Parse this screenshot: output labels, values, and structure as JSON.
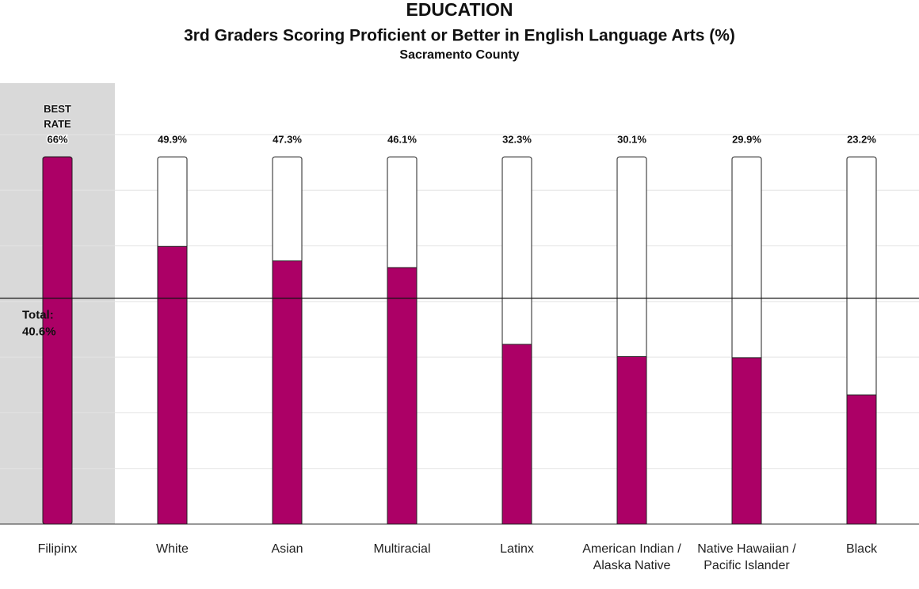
{
  "chart_data": {
    "type": "bar",
    "title": "EDUCATION",
    "subtitle": "3rd Graders Scoring Proficient or Better in English Language Arts (%)",
    "subtitle2": "Sacramento County",
    "categories": [
      "Filipinx",
      "White",
      "Asian",
      "Multiracial",
      "Latinx",
      "American Indian / Alaska Native",
      "Native Hawaiian / Pacific Islander",
      "Black"
    ],
    "values": [
      66,
      49.9,
      47.3,
      46.1,
      32.3,
      30.1,
      29.9,
      23.2
    ],
    "value_labels": [
      "66%",
      "49.9%",
      "47.3%",
      "46.1%",
      "32.3%",
      "30.1%",
      "29.9%",
      "23.2%"
    ],
    "highlight_label": "BEST RATE",
    "total": {
      "label": "Total:",
      "value": 40.6,
      "value_label": "40.6%"
    },
    "color": "#ac0066",
    "ylim": [
      0,
      70
    ],
    "yticks": [
      0,
      10,
      20,
      30,
      40,
      50,
      60,
      70
    ],
    "grid": true
  }
}
